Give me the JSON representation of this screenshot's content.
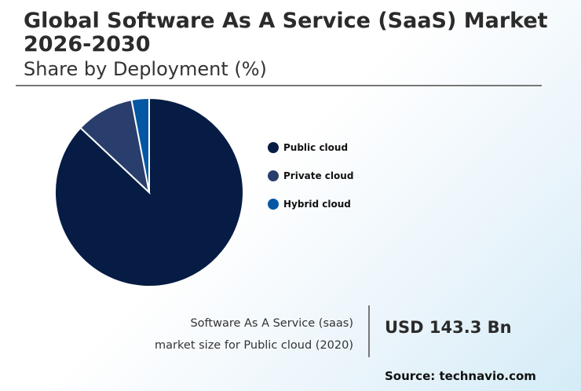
{
  "header": {
    "title": "Global Software As A Service (SaaS) Market 2026-2030",
    "subtitle": "Share by Deployment (%)"
  },
  "chart_data": {
    "type": "pie",
    "title": "Share by Deployment (%)",
    "categories": [
      "Public cloud",
      "Private cloud",
      "Hybrid cloud"
    ],
    "values": [
      87,
      10,
      3
    ],
    "colors": [
      "#061c44",
      "#293e6c",
      "#0457a2"
    ],
    "legend_position": "right"
  },
  "kpi": {
    "label_line1": "Software As A Service (saas)",
    "label_line2": "market size for Public cloud (2020)",
    "value": "USD 143.3 Bn"
  },
  "source": "Source: technavio.com"
}
